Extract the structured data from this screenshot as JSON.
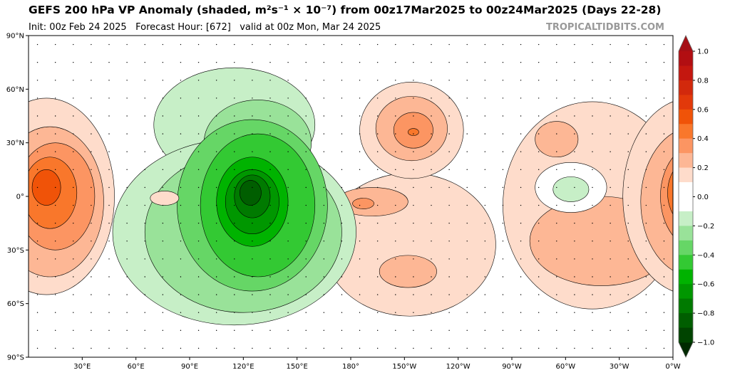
{
  "header": {
    "title": "GEFS 200 hPa VP Anomaly (shaded, m²s⁻¹ × 10⁻⁷) from 00z17Mar2025 to 00z24Mar2025 (Days 22-28)",
    "init": "Init: 00z Feb 24 2025",
    "forecast_hour": "Forecast Hour: [672]",
    "valid": "valid at 00z Mon, Mar 24 2025",
    "brand": "TROPICALTIDBITS.COM"
  },
  "axes": {
    "lat_ticks": [
      {
        "lat": 90,
        "label": "90°N"
      },
      {
        "lat": 60,
        "label": "60°N"
      },
      {
        "lat": 30,
        "label": "30°N"
      },
      {
        "lat": 0,
        "label": "0°"
      },
      {
        "lat": -30,
        "label": "30°S"
      },
      {
        "lat": -60,
        "label": "60°S"
      },
      {
        "lat": -90,
        "label": "90°S"
      }
    ],
    "lon_ticks": [
      {
        "lon": 30,
        "label": "30°E"
      },
      {
        "lon": 60,
        "label": "60°E"
      },
      {
        "lon": 90,
        "label": "90°E"
      },
      {
        "lon": 120,
        "label": "120°E"
      },
      {
        "lon": 150,
        "label": "150°E"
      },
      {
        "lon": 180,
        "label": "180°"
      },
      {
        "lon": 210,
        "label": "150°W"
      },
      {
        "lon": 240,
        "label": "120°W"
      },
      {
        "lon": 270,
        "label": "90°W"
      },
      {
        "lon": 300,
        "label": "60°W"
      },
      {
        "lon": 330,
        "label": "30°W"
      },
      {
        "lon": 360,
        "label": "0°W"
      }
    ]
  },
  "colorbar": {
    "ticks": [
      "1.0",
      "0.8",
      "0.6",
      "0.4",
      "0.2",
      "0.0",
      "−0.2",
      "−0.4",
      "−0.6",
      "−0.8",
      "−1.0"
    ],
    "over_color": "#a50f15",
    "under_color": "#002a00",
    "colors_top_to_bottom": [
      "#b20e12",
      "#c4170f",
      "#d2290c",
      "#e2390a",
      "#f05308",
      "#f9772b",
      "#fc9562",
      "#fdb795",
      "#fedccb",
      "#ffffff",
      "#ffffff",
      "#c7efc7",
      "#99e299",
      "#66d666",
      "#33c933",
      "#00b300",
      "#009700",
      "#007a00",
      "#005e00",
      "#004400"
    ]
  },
  "anomaly_features": [
    {
      "lon": 213,
      "lat": -27,
      "rlon": 48,
      "rlat": 40,
      "level": 0.1
    },
    {
      "lon": 192,
      "lat": -3,
      "rlon": 20,
      "rlat": 8,
      "level": 0.2
    },
    {
      "lon": 212,
      "lat": -42,
      "rlon": 16,
      "rlat": 9,
      "level": 0.2
    },
    {
      "lon": 187,
      "lat": -4,
      "rlon": 6,
      "rlat": 3,
      "level": 0.3
    },
    {
      "lon": 214,
      "lat": 37,
      "rlon": 29,
      "rlat": 27,
      "level": 0.1
    },
    {
      "lon": 214,
      "lat": 38,
      "rlon": 20,
      "rlat": 18,
      "level": 0.2
    },
    {
      "lon": 215,
      "lat": 37,
      "rlon": 11,
      "rlat": 10,
      "level": 0.3
    },
    {
      "lon": 215,
      "lat": 36,
      "rlon": 3,
      "rlat": 2,
      "level": 0.4
    },
    {
      "lon": 315,
      "lat": -5,
      "rlon": 50,
      "rlat": 58,
      "level": 0.1
    },
    {
      "lon": 320,
      "lat": -25,
      "rlon": 40,
      "rlat": 25,
      "level": 0.2
    },
    {
      "lon": 295,
      "lat": 32,
      "rlon": 12,
      "rlat": 10,
      "level": 0.2
    },
    {
      "lon": 303,
      "lat": 5,
      "rlon": 20,
      "rlat": 14,
      "level": 0.0
    },
    {
      "lon": 303,
      "lat": 4,
      "rlon": 10,
      "rlat": 7,
      "level": -0.1
    },
    {
      "lon": 10,
      "lat": 0,
      "rlon": 38,
      "rlat": 55,
      "level": 0.1
    },
    {
      "lon": 12,
      "lat": -3,
      "rlon": 30,
      "rlat": 42,
      "level": 0.2
    },
    {
      "lon": 15,
      "lat": 0,
      "rlon": 22,
      "rlat": 30,
      "level": 0.3
    },
    {
      "lon": 12,
      "lat": 2,
      "rlon": 15,
      "rlat": 20,
      "level": 0.4
    },
    {
      "lon": 10,
      "lat": 5,
      "rlon": 8,
      "rlat": 10,
      "level": 0.5
    },
    {
      "lon": 115,
      "lat": 40,
      "rlon": 45,
      "rlat": 32,
      "level": -0.1
    },
    {
      "lon": 115,
      "lat": -20,
      "rlon": 68,
      "rlat": 52,
      "level": -0.1
    },
    {
      "lon": 128,
      "lat": 30,
      "rlon": 30,
      "rlat": 24,
      "level": -0.2
    },
    {
      "lon": 120,
      "lat": -20,
      "rlon": 55,
      "rlat": 45,
      "level": -0.2
    },
    {
      "lon": 125,
      "lat": -5,
      "rlon": 42,
      "rlat": 48,
      "level": -0.3
    },
    {
      "lon": 128,
      "lat": -5,
      "rlon": 32,
      "rlat": 40,
      "level": -0.4
    },
    {
      "lon": 125,
      "lat": -3,
      "rlon": 20,
      "rlat": 25,
      "level": -0.5
    },
    {
      "lon": 125,
      "lat": -3,
      "rlon": 15,
      "rlat": 18,
      "level": -0.6
    },
    {
      "lon": 125,
      "lat": 0,
      "rlon": 10,
      "rlat": 12,
      "level": -0.7
    },
    {
      "lon": 124,
      "lat": 2,
      "rlon": 6,
      "rlat": 7,
      "level": -0.8
    },
    {
      "lon": 76,
      "lat": -1,
      "rlon": 8,
      "rlat": 4,
      "level": 0.1
    }
  ]
}
